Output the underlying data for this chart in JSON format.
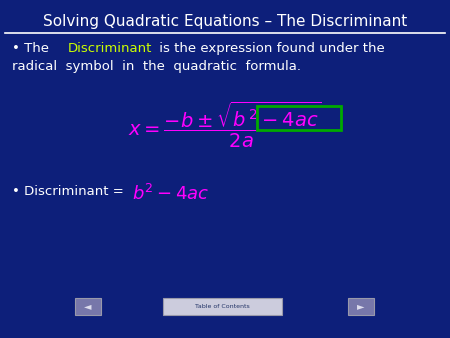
{
  "title": "Solving Quadratic Equations – The Discriminant",
  "title_color": "#FFFFFF",
  "title_fontsize": 11,
  "bg_color": "#0D1F7A",
  "line_color": "#FFFFFF",
  "bullet_color": "#FFFFFF",
  "discriminant_highlight_color": "#CCFF00",
  "formula_color": "#FF00FF",
  "box_color": "#00AA00",
  "toc_label": "Table of Contents",
  "figsize": [
    4.5,
    3.38
  ],
  "dpi": 100
}
